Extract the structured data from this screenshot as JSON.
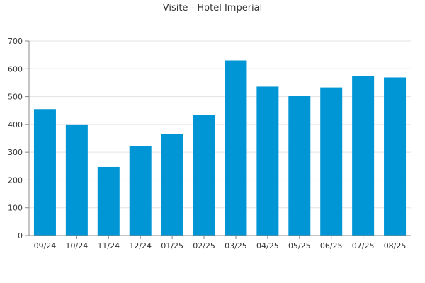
{
  "chart_data": {
    "type": "bar",
    "title": "Visite - Hotel Imperial",
    "xlabel": "",
    "ylabel": "",
    "categories": [
      "09/24",
      "10/24",
      "11/24",
      "12/24",
      "01/25",
      "02/25",
      "03/25",
      "04/25",
      "05/25",
      "06/25",
      "07/25",
      "08/25"
    ],
    "series": [
      {
        "values": [
          455,
          400,
          247,
          323,
          366,
          435,
          630,
          536,
          503,
          533,
          574,
          569
        ],
        "color": "#0096d6"
      }
    ],
    "ylim": [
      0,
      700
    ],
    "yticks": [
      0,
      100,
      200,
      300,
      400,
      500,
      600,
      700
    ],
    "grid": true,
    "legend": "none"
  }
}
